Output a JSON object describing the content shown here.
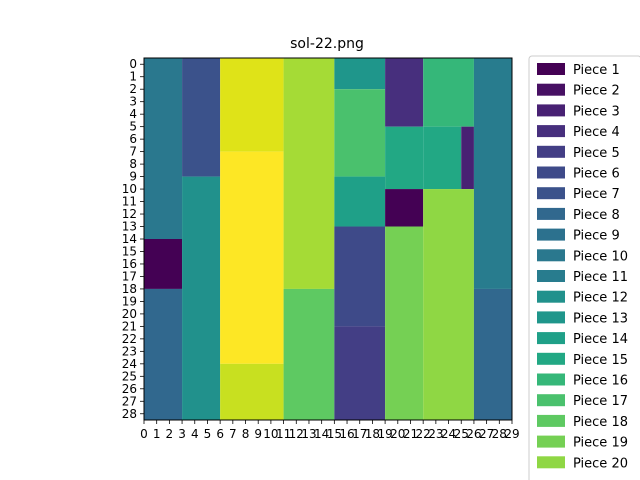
{
  "chart_data": {
    "type": "heatmap",
    "title": "sol-22.png",
    "xlabel": "",
    "ylabel": "",
    "x_ticks": [
      0,
      1,
      2,
      3,
      4,
      5,
      6,
      7,
      8,
      9,
      10,
      11,
      12,
      13,
      14,
      15,
      16,
      17,
      18,
      19,
      20,
      21,
      22,
      23,
      24,
      25,
      26,
      27,
      28,
      29
    ],
    "y_ticks": [
      0,
      1,
      2,
      3,
      4,
      5,
      6,
      7,
      8,
      9,
      10,
      11,
      12,
      13,
      14,
      15,
      16,
      17,
      18,
      19,
      20,
      21,
      22,
      23,
      24,
      25,
      26,
      27,
      28
    ],
    "xlim": [
      0,
      29
    ],
    "ylim": [
      0,
      29
    ],
    "grid": false,
    "legend_position": "outside-right",
    "colormap": "viridis",
    "cells": [
      {
        "x0": 0,
        "x1": 3,
        "y0": 0,
        "y1": 14.5,
        "color": "#2a788e"
      },
      {
        "x0": 0,
        "x1": 3,
        "y0": 14.5,
        "y1": 18.5,
        "color": "#440154"
      },
      {
        "x0": 0,
        "x1": 3,
        "y0": 18.5,
        "y1": 29,
        "color": "#31688e"
      },
      {
        "x0": 3,
        "x1": 6,
        "y0": 0,
        "y1": 9.5,
        "color": "#3b528b"
      },
      {
        "x0": 3,
        "x1": 6,
        "y0": 9.5,
        "y1": 29,
        "color": "#21918c"
      },
      {
        "x0": 6,
        "x1": 11,
        "y0": 0,
        "y1": 7.5,
        "color": "#dfe318"
      },
      {
        "x0": 6,
        "x1": 11,
        "y0": 7.5,
        "y1": 24.5,
        "color": "#fde725"
      },
      {
        "x0": 6,
        "x1": 11,
        "y0": 24.5,
        "y1": 29,
        "color": "#c8e020"
      },
      {
        "x0": 11,
        "x1": 15,
        "y0": 0,
        "y1": 18.5,
        "color": "#a5db36"
      },
      {
        "x0": 11,
        "x1": 15,
        "y0": 18.5,
        "y1": 29,
        "color": "#5ec962"
      },
      {
        "x0": 15,
        "x1": 19,
        "y0": 0,
        "y1": 2.5,
        "color": "#1f968b"
      },
      {
        "x0": 15,
        "x1": 19,
        "y0": 2.5,
        "y1": 9.5,
        "color": "#4ac16d"
      },
      {
        "x0": 15,
        "x1": 19,
        "y0": 9.5,
        "y1": 13.5,
        "color": "#1fa088"
      },
      {
        "x0": 15,
        "x1": 19,
        "y0": 13.5,
        "y1": 21.5,
        "color": "#3e4a89"
      },
      {
        "x0": 15,
        "x1": 19,
        "y0": 21.5,
        "y1": 29,
        "color": "#433e85"
      },
      {
        "x0": 19,
        "x1": 22,
        "y0": 0,
        "y1": 5.5,
        "color": "#472f7d"
      },
      {
        "x0": 19,
        "x1": 22,
        "y0": 5.5,
        "y1": 10.5,
        "color": "#22a884"
      },
      {
        "x0": 19,
        "x1": 22,
        "y0": 10.5,
        "y1": 13.5,
        "color": "#440154"
      },
      {
        "x0": 19,
        "x1": 22,
        "y0": 13.5,
        "y1": 29,
        "color": "#75d054"
      },
      {
        "x0": 22,
        "x1": 26,
        "y0": 0,
        "y1": 5.5,
        "color": "#35b779"
      },
      {
        "x0": 22,
        "x1": 25,
        "y0": 5.5,
        "y1": 10.5,
        "color": "#22a884"
      },
      {
        "x0": 25,
        "x1": 26,
        "y0": 5.5,
        "y1": 10.5,
        "color": "#482173"
      },
      {
        "x0": 22,
        "x1": 26,
        "y0": 10.5,
        "y1": 29,
        "color": "#8fd744"
      },
      {
        "x0": 26,
        "x1": 29,
        "y0": 0,
        "y1": 18.5,
        "color": "#287c8e"
      },
      {
        "x0": 26,
        "x1": 29,
        "y0": 18.5,
        "y1": 29,
        "color": "#31688e"
      }
    ],
    "legend": [
      {
        "label": "Piece 1",
        "color": "#440154"
      },
      {
        "label": "Piece 2",
        "color": "#471063"
      },
      {
        "label": "Piece 3",
        "color": "#482173"
      },
      {
        "label": "Piece 4",
        "color": "#472f7d"
      },
      {
        "label": "Piece 5",
        "color": "#433e85"
      },
      {
        "label": "Piece 6",
        "color": "#3e4a89"
      },
      {
        "label": "Piece 7",
        "color": "#3b528b"
      },
      {
        "label": "Piece 8",
        "color": "#31688e"
      },
      {
        "label": "Piece 9",
        "color": "#2c718e"
      },
      {
        "label": "Piece 10",
        "color": "#2a788e"
      },
      {
        "label": "Piece 11",
        "color": "#287c8e"
      },
      {
        "label": "Piece 12",
        "color": "#21918c"
      },
      {
        "label": "Piece 13",
        "color": "#1f968b"
      },
      {
        "label": "Piece 14",
        "color": "#1fa088"
      },
      {
        "label": "Piece 15",
        "color": "#22a884"
      },
      {
        "label": "Piece 16",
        "color": "#35b779"
      },
      {
        "label": "Piece 17",
        "color": "#4ac16d"
      },
      {
        "label": "Piece 18",
        "color": "#5ec962"
      },
      {
        "label": "Piece 19",
        "color": "#75d054"
      },
      {
        "label": "Piece 20",
        "color": "#8fd744"
      }
    ]
  }
}
